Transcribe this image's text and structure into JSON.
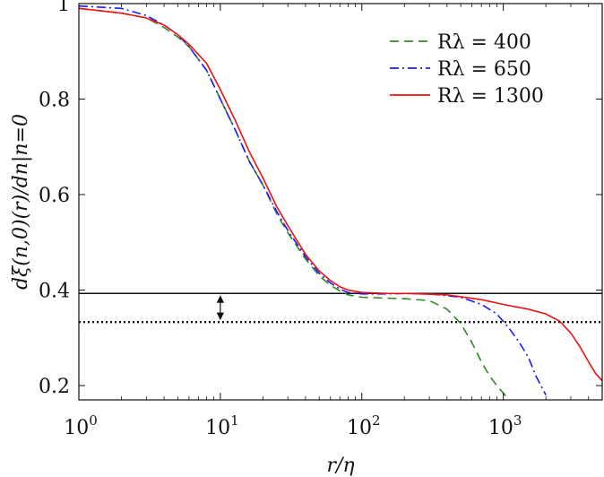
{
  "chart_data": {
    "type": "line",
    "xscale": "log",
    "xlim": [
      1,
      5000
    ],
    "ylim": [
      0.17,
      1.0
    ],
    "xlabel": "r/η",
    "ylabel": "dξ(n,0)(r)/dn|n=0",
    "x_ticks": [
      {
        "value": 1,
        "base": "10",
        "exp": "0"
      },
      {
        "value": 10,
        "base": "10",
        "exp": "1"
      },
      {
        "value": 100,
        "base": "10",
        "exp": "2"
      },
      {
        "value": 1000,
        "base": "10",
        "exp": "3"
      }
    ],
    "y_ticks": [
      {
        "value": 0.2,
        "label": "0.2"
      },
      {
        "value": 0.4,
        "label": "0.4"
      },
      {
        "value": 0.6,
        "label": "0.6"
      },
      {
        "value": 0.8,
        "label": "0.8"
      },
      {
        "value": 1.0,
        "label": "1"
      }
    ],
    "legend_position": "top-right",
    "series": [
      {
        "name": "Rλ = 400",
        "color": "#2e8b22",
        "dash": "dashed",
        "points": [
          [
            1,
            0.99
          ],
          [
            2,
            0.98
          ],
          [
            3,
            0.97
          ],
          [
            4,
            0.95
          ],
          [
            5,
            0.93
          ],
          [
            6,
            0.91
          ],
          [
            8,
            0.86
          ],
          [
            10,
            0.8
          ],
          [
            13,
            0.73
          ],
          [
            16,
            0.67
          ],
          [
            20,
            0.62
          ],
          [
            25,
            0.56
          ],
          [
            30,
            0.52
          ],
          [
            40,
            0.465
          ],
          [
            50,
            0.43
          ],
          [
            60,
            0.41
          ],
          [
            70,
            0.398
          ],
          [
            80,
            0.39
          ],
          [
            100,
            0.385
          ],
          [
            150,
            0.383
          ],
          [
            200,
            0.382
          ],
          [
            300,
            0.378
          ],
          [
            400,
            0.36
          ],
          [
            500,
            0.33
          ],
          [
            600,
            0.29
          ],
          [
            700,
            0.25
          ],
          [
            800,
            0.22
          ],
          [
            900,
            0.2
          ],
          [
            1100,
            0.17
          ]
        ]
      },
      {
        "name": "Rλ = 650",
        "color": "#1a1aff",
        "dash": "dashdot",
        "points": [
          [
            1,
            0.995
          ],
          [
            2,
            0.99
          ],
          [
            3,
            0.975
          ],
          [
            4,
            0.955
          ],
          [
            5,
            0.935
          ],
          [
            6,
            0.91
          ],
          [
            8,
            0.86
          ],
          [
            10,
            0.8
          ],
          [
            13,
            0.73
          ],
          [
            16,
            0.67
          ],
          [
            20,
            0.62
          ],
          [
            25,
            0.565
          ],
          [
            30,
            0.525
          ],
          [
            40,
            0.47
          ],
          [
            50,
            0.435
          ],
          [
            60,
            0.415
          ],
          [
            70,
            0.402
          ],
          [
            80,
            0.395
          ],
          [
            100,
            0.392
          ],
          [
            150,
            0.392
          ],
          [
            200,
            0.393
          ],
          [
            300,
            0.392
          ],
          [
            500,
            0.385
          ],
          [
            700,
            0.37
          ],
          [
            900,
            0.35
          ],
          [
            1100,
            0.32
          ],
          [
            1300,
            0.29
          ],
          [
            1500,
            0.26
          ],
          [
            1700,
            0.22
          ],
          [
            2000,
            0.18
          ]
        ]
      },
      {
        "name": "Rλ = 1300",
        "color": "#ee1111",
        "dash": "solid",
        "points": [
          [
            1,
            0.99
          ],
          [
            2,
            0.98
          ],
          [
            3,
            0.97
          ],
          [
            4,
            0.955
          ],
          [
            5,
            0.935
          ],
          [
            6,
            0.915
          ],
          [
            8,
            0.875
          ],
          [
            10,
            0.82
          ],
          [
            13,
            0.75
          ],
          [
            16,
            0.69
          ],
          [
            20,
            0.635
          ],
          [
            25,
            0.575
          ],
          [
            30,
            0.535
          ],
          [
            40,
            0.475
          ],
          [
            50,
            0.44
          ],
          [
            60,
            0.42
          ],
          [
            70,
            0.407
          ],
          [
            80,
            0.4
          ],
          [
            100,
            0.395
          ],
          [
            150,
            0.393
          ],
          [
            200,
            0.393
          ],
          [
            400,
            0.39
          ],
          [
            700,
            0.38
          ],
          [
            1000,
            0.37
          ],
          [
            1500,
            0.36
          ],
          [
            2000,
            0.35
          ],
          [
            2500,
            0.335
          ],
          [
            3000,
            0.31
          ],
          [
            3500,
            0.28
          ],
          [
            4000,
            0.25
          ],
          [
            4500,
            0.225
          ],
          [
            5000,
            0.21
          ]
        ]
      }
    ],
    "reference_lines": [
      {
        "y": 0.393,
        "style": "solid",
        "color": "#111111"
      },
      {
        "y": 0.333,
        "style": "dotted",
        "color": "#111111"
      }
    ],
    "annotation_arrow": {
      "x": 10,
      "y_from": 0.393,
      "y_to": 0.333,
      "type": "double-headed"
    }
  }
}
